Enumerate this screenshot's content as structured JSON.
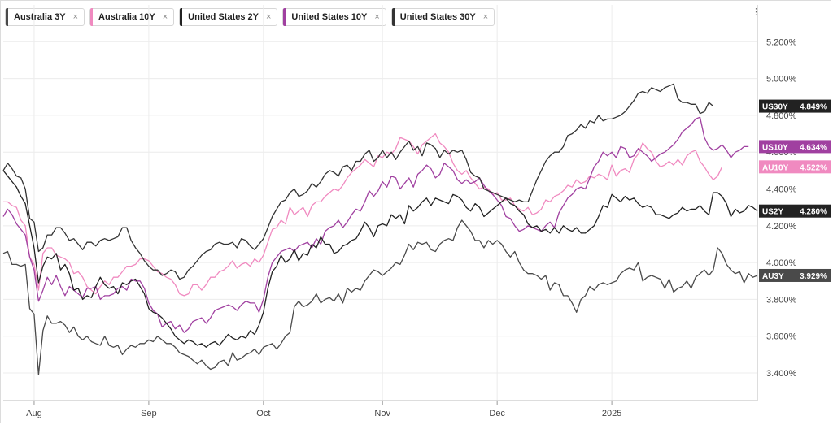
{
  "legend": [
    {
      "label": "Australia 3Y",
      "color": "#4a4a4a",
      "close_icon": "close-icon"
    },
    {
      "label": "Australia 10Y",
      "color": "#f08ac0",
      "close_icon": "close-icon"
    },
    {
      "label": "United States 2Y",
      "color": "#222222",
      "close_icon": "close-icon"
    },
    {
      "label": "United States 10Y",
      "color": "#a040a0",
      "close_icon": "close-icon"
    },
    {
      "label": "United States 30Y",
      "color": "#333333",
      "close_icon": "close-icon"
    }
  ],
  "menu_icon": "vertical-dots-icon",
  "chart_data": {
    "type": "line",
    "x_ticks": [
      "Aug",
      "Sep",
      "Oct",
      "Nov",
      "Dec",
      "2025"
    ],
    "y_ticks": [
      "3.400%",
      "3.600%",
      "3.800%",
      "4.000%",
      "4.200%",
      "4.400%",
      "4.600%",
      "4.800%",
      "5.000%",
      "5.200%"
    ],
    "ylim": [
      3.25,
      5.4
    ],
    "grid": true,
    "series": [
      {
        "name": "Australia 3Y",
        "tag": "AU3Y",
        "last_label": "3.929%",
        "color": "#4a4a4a",
        "tag_color": "#4a4a4a",
        "values": [
          4.05,
          4.06,
          3.99,
          3.99,
          3.98,
          3.99,
          3.75,
          3.72,
          3.39,
          3.63,
          3.71,
          3.67,
          3.67,
          3.68,
          3.66,
          3.62,
          3.65,
          3.6,
          3.58,
          3.6,
          3.57,
          3.56,
          3.55,
          3.6,
          3.55,
          3.54,
          3.55,
          3.5,
          3.53,
          3.55,
          3.54,
          3.56,
          3.56,
          3.58,
          3.57,
          3.6,
          3.58,
          3.56,
          3.56,
          3.54,
          3.51,
          3.5,
          3.49,
          3.47,
          3.45,
          3.47,
          3.44,
          3.42,
          3.43,
          3.46,
          3.47,
          3.44,
          3.51,
          3.47,
          3.48,
          3.5,
          3.51,
          3.53,
          3.5,
          3.54,
          3.55,
          3.56,
          3.53,
          3.56,
          3.6,
          3.62,
          3.76,
          3.79,
          3.76,
          3.77,
          3.79,
          3.83,
          3.78,
          3.8,
          3.81,
          3.79,
          3.83,
          3.78,
          3.86,
          3.84,
          3.86,
          3.85,
          3.9,
          3.93,
          3.96,
          3.95,
          3.93,
          3.95,
          3.97,
          4.0,
          3.99,
          4.04,
          4.1,
          4.07,
          4.11,
          4.1,
          4.11,
          4.07,
          4.06,
          4.1,
          4.12,
          4.13,
          4.12,
          4.19,
          4.23,
          4.2,
          4.17,
          4.12,
          4.12,
          4.08,
          4.12,
          4.1,
          4.12,
          4.1,
          4.06,
          4.03,
          4.06,
          4.0,
          3.96,
          3.94,
          3.94,
          3.93,
          3.91,
          3.93,
          3.85,
          3.89,
          3.88,
          3.82,
          3.82,
          3.78,
          3.73,
          3.8,
          3.82,
          3.87,
          3.85,
          3.88,
          3.89,
          3.88,
          3.89,
          3.9,
          3.94,
          3.96,
          3.97,
          3.96,
          4.0,
          3.9,
          3.92,
          3.93,
          3.92,
          3.91,
          3.86,
          3.91,
          3.84,
          3.86,
          3.87,
          3.9,
          3.86,
          3.92,
          3.94,
          3.96,
          3.93,
          3.96,
          4.08,
          4.05,
          3.99,
          3.96,
          3.94,
          3.95,
          3.89,
          3.94,
          3.92,
          3.93
        ]
      },
      {
        "name": "Australia 10Y",
        "tag": "AU10Y",
        "last_label": "4.522%",
        "color": "#f08ac0",
        "tag_color": "#f08ac0",
        "values": [
          4.33,
          4.33,
          4.31,
          4.3,
          4.23,
          4.2,
          4.03,
          3.99,
          3.85,
          4.05,
          4.08,
          4.08,
          4.04,
          4.03,
          4.02,
          4.0,
          3.94,
          3.95,
          3.92,
          3.87,
          3.85,
          3.83,
          3.87,
          3.9,
          3.88,
          3.92,
          3.92,
          3.95,
          3.98,
          3.98,
          3.99,
          4.02,
          4.02,
          4.01,
          3.98,
          3.95,
          3.94,
          3.92,
          3.91,
          3.88,
          3.83,
          3.82,
          3.83,
          3.88,
          3.88,
          3.85,
          3.88,
          3.92,
          3.92,
          3.95,
          3.96,
          3.98,
          4.01,
          3.97,
          3.99,
          4.0,
          3.98,
          4.02,
          4.0,
          4.04,
          4.11,
          4.18,
          4.19,
          4.23,
          4.21,
          4.3,
          4.26,
          4.28,
          4.3,
          4.25,
          4.31,
          4.33,
          4.33,
          4.36,
          4.38,
          4.4,
          4.39,
          4.42,
          4.46,
          4.49,
          4.51,
          4.53,
          4.56,
          4.54,
          4.52,
          4.58,
          4.57,
          4.6,
          4.59,
          4.62,
          4.68,
          4.67,
          4.66,
          4.63,
          4.59,
          4.64,
          4.66,
          4.68,
          4.7,
          4.65,
          4.63,
          4.6,
          4.54,
          4.5,
          4.48,
          4.5,
          4.46,
          4.43,
          4.4,
          4.41,
          4.4,
          4.37,
          4.38,
          4.34,
          4.34,
          4.35,
          4.31,
          4.29,
          4.28,
          4.3,
          4.26,
          4.27,
          4.29,
          4.34,
          4.33,
          4.36,
          4.37,
          4.39,
          4.42,
          4.41,
          4.45,
          4.43,
          4.44,
          4.47,
          4.46,
          4.48,
          4.47,
          4.45,
          4.53,
          4.47,
          4.5,
          4.51,
          4.49,
          4.56,
          4.59,
          4.65,
          4.62,
          4.6,
          4.55,
          4.52,
          4.53,
          4.55,
          4.53,
          4.56,
          4.53,
          4.58,
          4.6,
          4.61,
          4.55,
          4.52,
          4.48,
          4.45,
          4.47,
          4.52
        ]
      },
      {
        "name": "United States 2Y",
        "tag": "US2Y",
        "last_label": "4.280%",
        "color": "#222222",
        "tag_color": "#222222",
        "values": [
          4.5,
          4.47,
          4.44,
          4.41,
          4.36,
          4.32,
          4.2,
          4.08,
          3.89,
          3.98,
          4.03,
          4.02,
          4.05,
          3.96,
          3.99,
          3.94,
          3.85,
          3.86,
          3.8,
          3.82,
          3.81,
          3.87,
          3.92,
          3.88,
          3.86,
          3.87,
          3.83,
          3.89,
          3.88,
          3.9,
          3.91,
          3.87,
          3.83,
          3.75,
          3.73,
          3.72,
          3.7,
          3.67,
          3.64,
          3.6,
          3.58,
          3.56,
          3.58,
          3.57,
          3.55,
          3.56,
          3.54,
          3.56,
          3.57,
          3.55,
          3.58,
          3.61,
          3.59,
          3.58,
          3.6,
          3.59,
          3.63,
          3.61,
          3.66,
          3.73,
          3.86,
          3.95,
          3.98,
          4.04,
          4.0,
          4.02,
          4.07,
          4.01,
          4.05,
          4.04,
          4.1,
          4.08,
          4.14,
          4.1,
          4.1,
          4.05,
          4.06,
          4.09,
          4.1,
          4.12,
          4.13,
          4.17,
          4.22,
          4.19,
          4.14,
          4.2,
          4.21,
          4.2,
          4.26,
          4.24,
          4.26,
          4.21,
          4.31,
          4.28,
          4.3,
          4.33,
          4.35,
          4.31,
          4.35,
          4.34,
          4.33,
          4.32,
          4.37,
          4.36,
          4.34,
          4.3,
          4.28,
          4.32,
          4.3,
          4.25,
          4.27,
          4.29,
          4.31,
          4.33,
          4.35,
          4.32,
          4.31,
          4.28,
          4.26,
          4.21,
          4.19,
          4.2,
          4.17,
          4.18,
          4.16,
          4.19,
          4.16,
          4.2,
          4.18,
          4.17,
          4.19,
          4.16,
          4.16,
          4.18,
          4.2,
          4.25,
          4.31,
          4.3,
          4.37,
          4.35,
          4.33,
          4.36,
          4.34,
          4.35,
          4.32,
          4.3,
          4.31,
          4.3,
          4.26,
          4.26,
          4.25,
          4.24,
          4.26,
          4.27,
          4.3,
          4.28,
          4.29,
          4.29,
          4.31,
          4.28,
          4.26,
          4.38,
          4.38,
          4.36,
          4.32,
          4.25,
          4.29,
          4.27,
          4.28,
          4.31,
          4.3,
          4.28
        ]
      },
      {
        "name": "United States 10Y",
        "tag": "US10Y",
        "last_label": "4.634%",
        "color": "#a040a0",
        "tag_color": "#a040a0",
        "values": [
          4.25,
          4.29,
          4.26,
          4.21,
          4.18,
          4.15,
          4.03,
          3.96,
          3.79,
          3.85,
          3.92,
          3.88,
          3.93,
          3.87,
          3.82,
          3.87,
          3.85,
          3.83,
          3.81,
          3.86,
          3.86,
          3.87,
          3.8,
          3.82,
          3.82,
          3.83,
          3.86,
          3.87,
          3.85,
          3.91,
          3.9,
          3.9,
          3.86,
          3.78,
          3.74,
          3.72,
          3.65,
          3.67,
          3.68,
          3.64,
          3.66,
          3.62,
          3.64,
          3.68,
          3.69,
          3.7,
          3.67,
          3.7,
          3.74,
          3.75,
          3.76,
          3.77,
          3.76,
          3.74,
          3.77,
          3.79,
          3.78,
          3.78,
          3.73,
          3.8,
          3.92,
          4.0,
          4.03,
          4.06,
          4.07,
          4.08,
          4.06,
          4.09,
          4.1,
          4.11,
          4.08,
          4.13,
          4.1,
          4.17,
          4.19,
          4.2,
          4.23,
          4.19,
          4.22,
          4.26,
          4.29,
          4.28,
          4.33,
          4.39,
          4.36,
          4.39,
          4.44,
          4.41,
          4.47,
          4.46,
          4.4,
          4.43,
          4.46,
          4.41,
          4.48,
          4.5,
          4.53,
          4.51,
          4.46,
          4.48,
          4.54,
          4.52,
          4.5,
          4.45,
          4.43,
          4.45,
          4.43,
          4.44,
          4.46,
          4.42,
          4.39,
          4.37,
          4.34,
          4.31,
          4.25,
          4.24,
          4.2,
          4.17,
          4.18,
          4.2,
          4.19,
          4.18,
          4.17,
          4.2,
          4.22,
          4.19,
          4.27,
          4.31,
          4.35,
          4.37,
          4.4,
          4.41,
          4.4,
          4.46,
          4.52,
          4.55,
          4.6,
          4.58,
          4.6,
          4.57,
          4.63,
          4.62,
          4.57,
          4.58,
          4.62,
          4.6,
          4.58,
          4.55,
          4.57,
          4.59,
          4.6,
          4.62,
          4.64,
          4.67,
          4.71,
          4.73,
          4.75,
          4.78,
          4.79,
          4.68,
          4.63,
          4.61,
          4.62,
          4.64,
          4.61,
          4.57,
          4.6,
          4.61,
          4.63,
          4.63
        ]
      },
      {
        "name": "United States 30Y",
        "tag": "US30Y",
        "last_label": "4.849%",
        "color": "#333333",
        "tag_color": "#222222",
        "values": [
          4.5,
          4.54,
          4.51,
          4.47,
          4.46,
          4.4,
          4.24,
          4.22,
          4.06,
          4.08,
          4.15,
          4.15,
          4.19,
          4.19,
          4.16,
          4.12,
          4.13,
          4.1,
          4.07,
          4.11,
          4.11,
          4.09,
          4.12,
          4.13,
          4.12,
          4.13,
          4.14,
          4.19,
          4.19,
          4.12,
          4.08,
          4.05,
          4.01,
          3.98,
          3.96,
          3.96,
          3.93,
          3.94,
          3.96,
          3.95,
          3.91,
          3.92,
          3.96,
          3.98,
          4.01,
          4.04,
          4.06,
          4.07,
          4.1,
          4.11,
          4.1,
          4.1,
          4.11,
          4.08,
          4.13,
          4.12,
          4.09,
          4.07,
          4.1,
          4.13,
          4.19,
          4.25,
          4.29,
          4.33,
          4.34,
          4.38,
          4.4,
          4.36,
          4.37,
          4.39,
          4.43,
          4.41,
          4.44,
          4.48,
          4.5,
          4.49,
          4.47,
          4.52,
          4.53,
          4.5,
          4.55,
          4.55,
          4.59,
          4.61,
          4.55,
          4.57,
          4.61,
          4.57,
          4.6,
          4.56,
          4.6,
          4.63,
          4.66,
          4.61,
          4.63,
          4.58,
          4.65,
          4.64,
          4.62,
          4.57,
          4.61,
          4.59,
          4.61,
          4.6,
          4.61,
          4.56,
          4.49,
          4.47,
          4.46,
          4.4,
          4.39,
          4.38,
          4.37,
          4.36,
          4.35,
          4.34,
          4.33,
          4.34,
          4.33,
          4.33,
          4.39,
          4.45,
          4.5,
          4.55,
          4.58,
          4.6,
          4.6,
          4.63,
          4.69,
          4.7,
          4.72,
          4.75,
          4.73,
          4.77,
          4.76,
          4.8,
          4.77,
          4.78,
          4.78,
          4.79,
          4.8,
          4.82,
          4.85,
          4.88,
          4.92,
          4.93,
          4.92,
          4.95,
          4.94,
          4.93,
          4.95,
          4.96,
          4.97,
          4.89,
          4.87,
          4.87,
          4.86,
          4.86,
          4.81,
          4.82,
          4.87,
          4.85
        ]
      }
    ]
  }
}
